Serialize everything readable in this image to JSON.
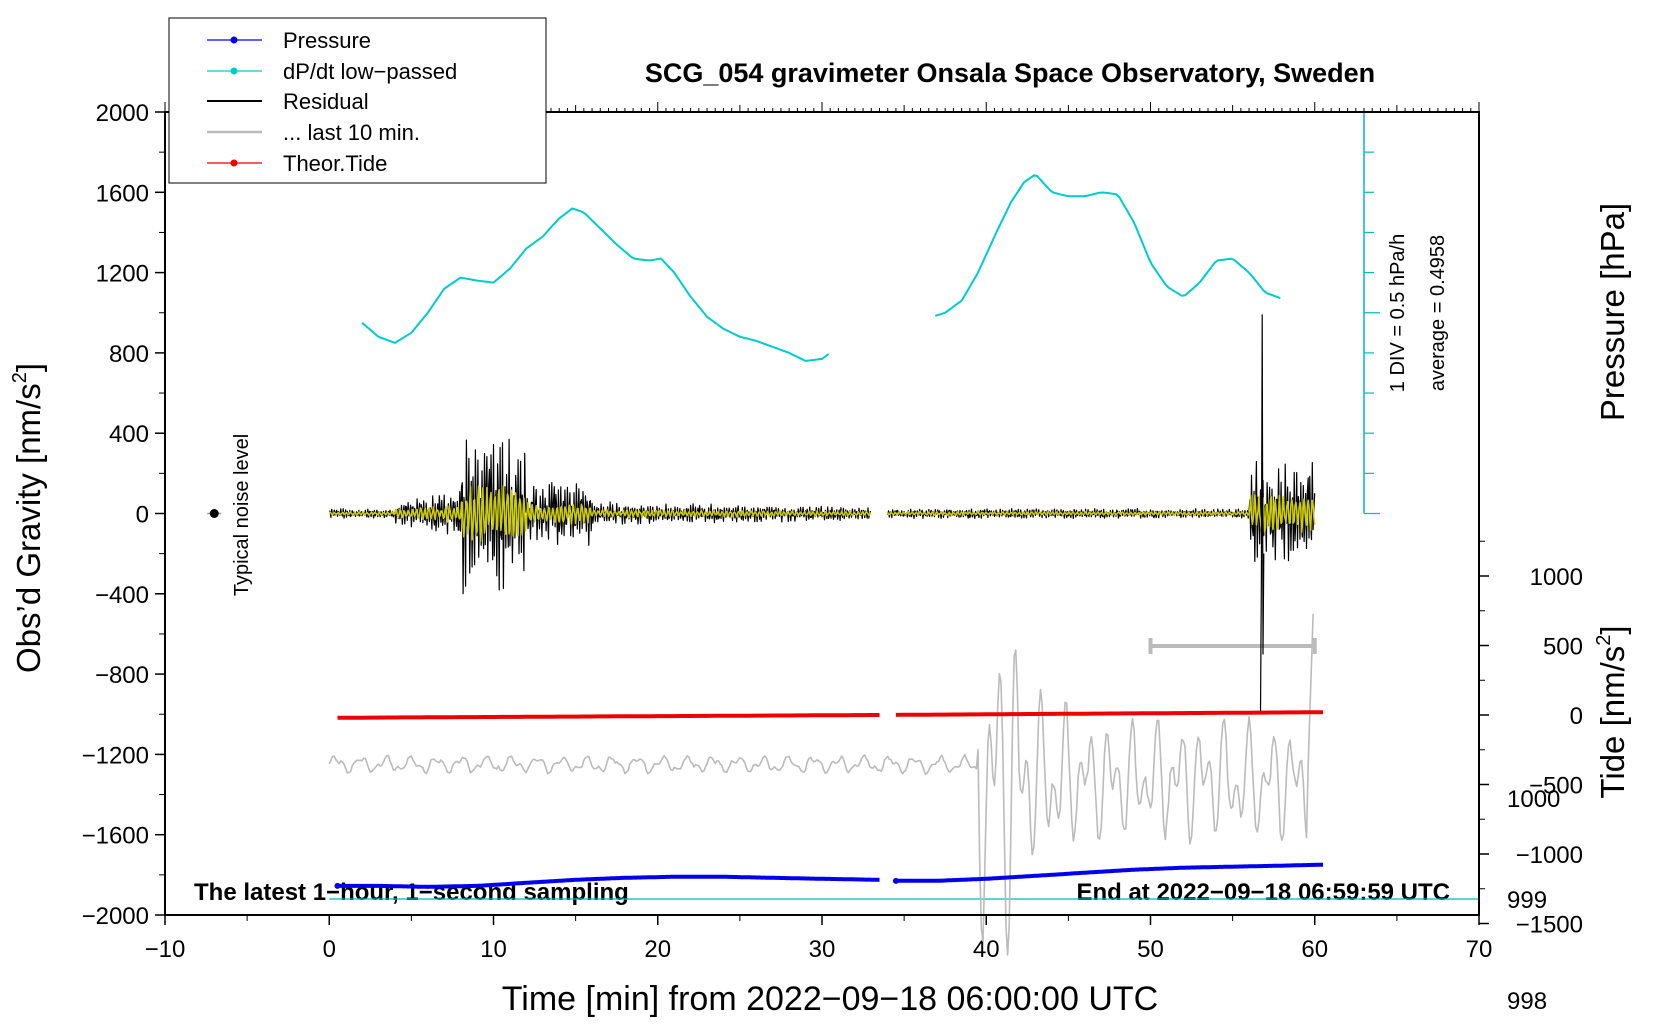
{
  "chart_data": {
    "type": "line",
    "title": "SCG_054 gravimeter Onsala Space Observatory, Sweden",
    "xlabel": "Time [min] from 2022−09−18 06:00:00 UTC",
    "ylabel_left": "Obs’d Gravity [nm/s",
    "ylabel_left_sup": "2",
    "ylabel_left_end": "]",
    "ylabel_right_pressure": "Pressure [hPa]",
    "ylabel_right_tide": "Tide [nm/s",
    "ylabel_right_tide_sup": "2",
    "ylabel_right_tide_end": "]",
    "xlim": [
      -10,
      70
    ],
    "ylim": [
      -2000,
      2000
    ],
    "pressure_lim": [
      997,
      1001
    ],
    "tide_lim": [
      -1500,
      1500
    ],
    "x_ticks": [
      {
        "v": -10,
        "label": "−10"
      },
      {
        "v": 0,
        "label": "0"
      },
      {
        "v": 10,
        "label": "10"
      },
      {
        "v": 20,
        "label": "20"
      },
      {
        "v": 30,
        "label": "30"
      },
      {
        "v": 40,
        "label": "40"
      },
      {
        "v": 50,
        "label": "50"
      },
      {
        "v": 60,
        "label": "60"
      },
      {
        "v": 70,
        "label": "70"
      }
    ],
    "y_ticks": [
      {
        "v": 2000,
        "label": "2000"
      },
      {
        "v": 1600,
        "label": "1600"
      },
      {
        "v": 1200,
        "label": "1200"
      },
      {
        "v": 800,
        "label": "800"
      },
      {
        "v": 400,
        "label": "400"
      },
      {
        "v": 0,
        "label": "0"
      },
      {
        "v": -400,
        "label": "−400"
      },
      {
        "v": -800,
        "label": "−800"
      },
      {
        "v": -1200,
        "label": "−1200"
      },
      {
        "v": -1600,
        "label": "−1600"
      },
      {
        "v": -2000,
        "label": "−2000"
      }
    ],
    "pressure_ticks": [
      {
        "v": 1000,
        "label": "1000"
      },
      {
        "v": 999,
        "label": "999"
      },
      {
        "v": 998,
        "label": "998"
      }
    ],
    "tide_ticks": [
      {
        "v": 1000,
        "label": "1000"
      },
      {
        "v": 500,
        "label": "500"
      },
      {
        "v": 0,
        "label": "0"
      },
      {
        "v": -500,
        "label": "−500"
      },
      {
        "v": -1000,
        "label": "−1000"
      },
      {
        "v": -1500,
        "label": "−1500"
      }
    ],
    "legend": [
      {
        "key": "pressure",
        "label": "Pressure",
        "color": "#0000ee",
        "marker": true
      },
      {
        "key": "dpdt",
        "label": "dP/dt low−passed",
        "color": "#00cccc",
        "marker": true
      },
      {
        "key": "residual",
        "label": "Residual",
        "color": "#000000",
        "marker": false
      },
      {
        "key": "last10",
        "label": "... last 10 min.",
        "color": "#bbbbbb",
        "marker": false
      },
      {
        "key": "tide",
        "label": "Theor.Tide",
        "color": "#ee0000",
        "marker": true
      }
    ],
    "annotations": {
      "bottom_left": "The latest 1−hour, 1−second sampling",
      "bottom_right": "End at 2022−09−18 06:59:59 UTC",
      "noise_label": "Typical noise level",
      "div_label": "1 DIV = 0.5 hPa/h",
      "avg_label": "average = 0.4958"
    },
    "dpdt_scale": {
      "x": 63,
      "y_bottom": 0,
      "y_top": 2000,
      "baseline": 999
    },
    "last10_bar": {
      "x_start": 50,
      "x_end": 60,
      "y": -660
    },
    "series": {
      "pressure": {
        "color": "#0000ee",
        "segments": [
          {
            "x": [
              0.5,
              3,
              6,
              9,
              12,
              15,
              18,
              21,
              24,
              27,
              30,
              33.5
            ],
            "y": [
              999.13,
              999.13,
              999.12,
              999.13,
              999.16,
              999.19,
              999.21,
              999.22,
              999.22,
              999.21,
              999.2,
              999.19
            ]
          },
          {
            "x": [
              34.5,
              37,
              40,
              43,
              46,
              49,
              52,
              55,
              58,
              60.5
            ],
            "y": [
              999.18,
              999.18,
              999.2,
              999.23,
              999.26,
              999.29,
              999.31,
              999.32,
              999.33,
              999.34
            ]
          }
        ]
      },
      "dpdt": {
        "color": "#00cccc",
        "baseline_pressure": 999,
        "segments": [
          {
            "x": [
              2,
              3,
              4,
              5,
              6,
              7,
              8,
              9,
              10,
              11,
              12,
              13,
              14,
              14.8,
              15.5,
              16.5,
              17.5,
              18.5,
              19.5,
              20.2,
              21,
              22,
              23,
              24,
              25,
              26,
              27,
              28,
              29,
              30,
              30.5
            ],
            "y": [
              950,
              880,
              850,
              900,
              1000,
              1120,
              1175,
              1160,
              1150,
              1220,
              1320,
              1380,
              1470,
              1520,
              1500,
              1420,
              1340,
              1270,
              1260,
              1270,
              1200,
              1080,
              980,
              920,
              880,
              860,
              830,
              800,
              760,
              770,
              800
            ]
          },
          {
            "x": [
              36.9,
              37.5,
              38.5,
              39.5,
              40.5,
              41.5,
              42.3,
              43,
              44,
              45,
              46,
              47,
              48,
              49,
              50,
              51,
              52,
              53,
              54,
              55,
              56,
              57,
              58
            ],
            "y": [
              985,
              1000,
              1060,
              1200,
              1380,
              1550,
              1650,
              1690,
              1600,
              1580,
              1580,
              1600,
              1590,
              1450,
              1250,
              1130,
              1080,
              1150,
              1260,
              1270,
              1200,
              1100,
              1070
            ]
          }
        ]
      },
      "residual": {
        "color": "#000000",
        "xrange": [
          0,
          60
        ]
      },
      "residual_lp": {
        "color": "#cccc00"
      },
      "last10": {
        "color": "#bbbbbb",
        "xrange": [
          0,
          60
        ],
        "offset": -1250
      },
      "tide": {
        "color": "#ee0000",
        "segments": [
          {
            "x": [
              0.5,
              33.5
            ],
            "y": [
              -20,
              0
            ]
          },
          {
            "x": [
              34.5,
              60.5
            ],
            "y": [
              1,
              20
            ]
          }
        ]
      },
      "noise_point": {
        "x": -7,
        "y": 0,
        "err": 20
      }
    }
  }
}
